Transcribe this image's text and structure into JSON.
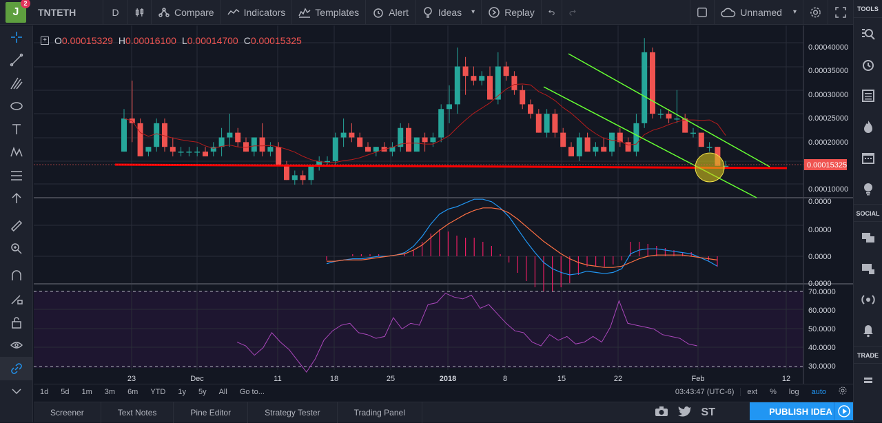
{
  "header": {
    "avatar_letter": "J",
    "avatar_badge": "2",
    "symbol": "TNTETH",
    "interval": "D",
    "compare": "Compare",
    "indicators": "Indicators",
    "templates": "Templates",
    "alert": "Alert",
    "ideas": "Ideas",
    "replay": "Replay",
    "layout_name": "Unnamed"
  },
  "ohlc": {
    "o_label": "O",
    "o": "0.00015329",
    "h_label": "H",
    "h": "0.00016100",
    "l_label": "L",
    "l": "0.00014700",
    "c_label": "C",
    "c": "0.00015325"
  },
  "price_axis": {
    "main": [
      "0.00040000",
      "0.00035000",
      "0.00030000",
      "0.00025000",
      "0.00020000",
      "0.00010000"
    ],
    "current": "0.00015325",
    "macd": [
      "0.0000",
      "0.0000",
      "0.0000",
      "0.0000"
    ],
    "rsi": [
      "70.0000",
      "60.0000",
      "50.0000",
      "40.0000",
      "30.0000"
    ]
  },
  "time_axis": [
    "23",
    "Dec",
    "11",
    "18",
    "25",
    "2018",
    "8",
    "15",
    "22",
    "Feb",
    "12"
  ],
  "bottom_bar": {
    "ranges": [
      "1d",
      "5d",
      "1m",
      "3m",
      "6m",
      "YTD",
      "1y",
      "5y",
      "All"
    ],
    "goto": "Go to...",
    "clock": "03:43:47 (UTC-6)",
    "ext": "ext",
    "pct": "%",
    "log": "log",
    "auto": "auto"
  },
  "bottom_tabs": [
    "Screener",
    "Text Notes",
    "Pine Editor",
    "Strategy Tester",
    "Trading Panel"
  ],
  "publish": "PUBLISH IDEA",
  "share_st": "ST",
  "right_panel": {
    "tools": "TOOLS",
    "social": "SOCIAL",
    "trade": "TRADE"
  },
  "colors": {
    "up": "#26a69a",
    "down": "#ef5350",
    "support": "#ff0000",
    "channel": "#66ff33",
    "macd": "#2196f3",
    "signal": "#ff7043",
    "rsi": "#ab47bc"
  }
}
